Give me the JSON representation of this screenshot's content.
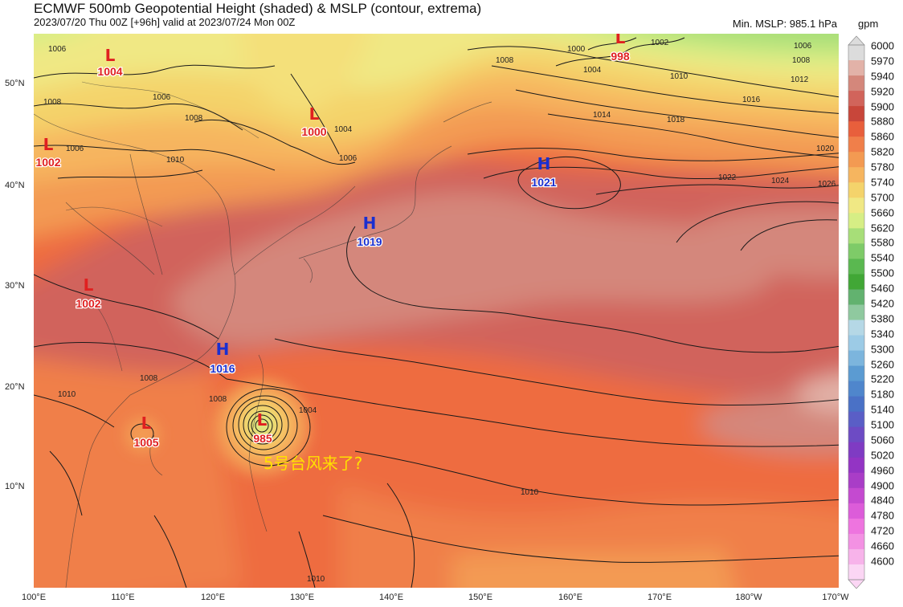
{
  "header": {
    "title": "ECMWF 500mb Geopotential Height (shaded) & MSLP (contour, extrema)",
    "subtitle": "2023/07/20 Thu 00Z [+96h] valid at 2023/07/24 Mon 00Z",
    "min_mslp": "Min. MSLP: 985.1 hPa",
    "unit": "gpm"
  },
  "axes": {
    "lat_labels": [
      "50°N",
      "40°N",
      "30°N",
      "20°N",
      "10°N"
    ],
    "lon_labels": [
      "100°E",
      "110°E",
      "120°E",
      "130°E",
      "140°E",
      "150°E",
      "160°E",
      "170°E",
      "180°W",
      "170°W"
    ]
  },
  "colorbar": {
    "levels": [
      "6000",
      "5970",
      "5940",
      "5920",
      "5900",
      "5880",
      "5860",
      "5820",
      "5780",
      "5740",
      "5700",
      "5660",
      "5620",
      "5580",
      "5540",
      "5500",
      "5460",
      "5420",
      "5380",
      "5340",
      "5300",
      "5260",
      "5220",
      "5180",
      "5140",
      "5100",
      "5060",
      "5020",
      "4960",
      "4900",
      "4840",
      "4780",
      "4720",
      "4660",
      "4600"
    ],
    "colors": [
      "#dcdcdc",
      "#e2b2a8",
      "#d4877b",
      "#d1645b",
      "#c8463a",
      "#e85f3c",
      "#f07f4a",
      "#f39a52",
      "#f6b55f",
      "#f4d36b",
      "#f0e884",
      "#d6ee85",
      "#a7de78",
      "#7ecb68",
      "#5ab850",
      "#41a736",
      "#62b26f",
      "#8fc99f",
      "#b5d8e6",
      "#9ccbe6",
      "#7cb5dd",
      "#5b9bd2",
      "#4f86cc",
      "#4a71c6",
      "#5a5ec6",
      "#6d4bc4",
      "#7f3bc3",
      "#9334c4",
      "#a93dc7",
      "#c44ad0",
      "#dc5cd9",
      "#ee74df",
      "#f391e3",
      "#f7b3ea",
      "#fbd6f4"
    ]
  },
  "pressure_systems": [
    {
      "type": "L",
      "value": "1004"
    },
    {
      "type": "L",
      "value": "998"
    },
    {
      "type": "L",
      "value": "1000"
    },
    {
      "type": "L",
      "value": "1002"
    },
    {
      "type": "H",
      "value": "1021"
    },
    {
      "type": "H",
      "value": "1019"
    },
    {
      "type": "L",
      "value": "1002"
    },
    {
      "type": "H",
      "value": "1016"
    },
    {
      "type": "L",
      "value": "985"
    },
    {
      "type": "L",
      "value": "1005"
    }
  ],
  "contour_labels": [
    "1006",
    "1006",
    "1008",
    "1008",
    "1004",
    "1006",
    "1010",
    "1006",
    "1008",
    "1000",
    "1004",
    "1002",
    "1006",
    "1008",
    "1010",
    "1012",
    "1016",
    "1014",
    "1018",
    "1020",
    "1022",
    "1024",
    "1026",
    "1008",
    "1008",
    "1010",
    "1004",
    "1010",
    "1010"
  ],
  "annotation": "5号台风来了?"
}
